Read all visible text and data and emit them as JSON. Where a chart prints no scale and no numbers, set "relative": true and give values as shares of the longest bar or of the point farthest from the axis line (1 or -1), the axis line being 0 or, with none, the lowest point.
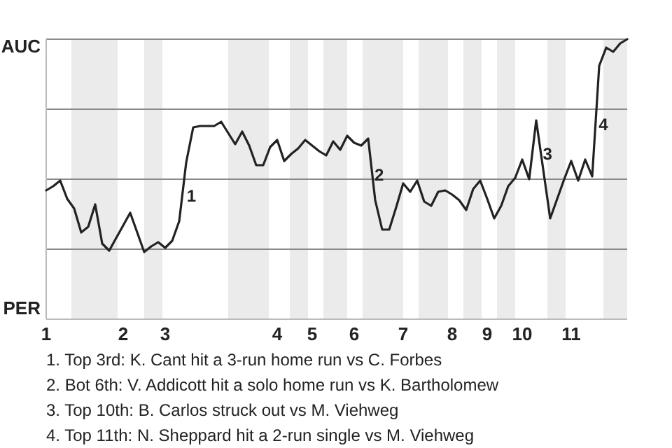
{
  "chart_data": {
    "type": "line",
    "relative": true,
    "categories": [
      "1",
      null,
      null,
      null,
      null,
      null,
      null,
      null,
      null,
      null,
      null,
      "2",
      null,
      null,
      null,
      null,
      null,
      "3",
      null,
      null,
      null,
      null,
      null,
      null,
      null,
      null,
      null,
      null,
      null,
      null,
      null,
      null,
      null,
      "4",
      null,
      null,
      null,
      null,
      "5",
      null,
      null,
      null,
      null,
      null,
      "6",
      null,
      null,
      null,
      null,
      null,
      null,
      "7",
      null,
      null,
      null,
      null,
      null,
      null,
      "8",
      null,
      null,
      null,
      null,
      "9",
      null,
      null,
      null,
      null,
      "10",
      null,
      null,
      null,
      null,
      null,
      null,
      "11",
      null,
      null,
      null,
      null,
      null,
      null,
      null,
      null
    ],
    "series": [
      {
        "color": "#222222",
        "values": [
          0.46,
          0.475,
          0.495,
          0.43,
          0.395,
          0.31,
          0.33,
          0.41,
          0.27,
          0.245,
          0.29,
          0.335,
          0.38,
          0.31,
          0.24,
          0.26,
          0.275,
          0.255,
          0.28,
          0.35,
          0.56,
          0.685,
          0.69,
          0.69,
          0.69,
          0.705,
          0.665,
          0.625,
          0.67,
          0.62,
          0.55,
          0.55,
          0.615,
          0.64,
          0.565,
          0.59,
          0.61,
          0.64,
          0.62,
          0.6,
          0.585,
          0.635,
          0.605,
          0.655,
          0.63,
          0.62,
          0.645,
          0.425,
          0.32,
          0.32,
          0.4,
          0.485,
          0.455,
          0.495,
          0.42,
          0.405,
          0.455,
          0.46,
          0.445,
          0.425,
          0.39,
          0.465,
          0.495,
          0.43,
          0.36,
          0.405,
          0.475,
          0.505,
          0.57,
          0.5,
          0.71,
          0.535,
          0.36,
          0.43,
          0.5,
          0.565,
          0.495,
          0.57,
          0.51,
          0.905,
          0.97,
          0.955,
          0.985,
          1.0
        ]
      }
    ],
    "grid": "y",
    "marker": "none",
    "line_style": "solid",
    "annotations": [
      "AUC",
      "PER",
      "1",
      "2",
      "3",
      "4",
      "1. Top 3rd: K. Cant hit a 3-run home run vs C. Forbes",
      "2. Bot 6th: V. Addicott hit a solo home run vs K. Bartholomew",
      "3. Top 10th: B. Carlos struck out vs M. Viehweg",
      "4. Top 11th: N. Sheppard hit a 2-run single vs M. Viehweg"
    ]
  }
}
